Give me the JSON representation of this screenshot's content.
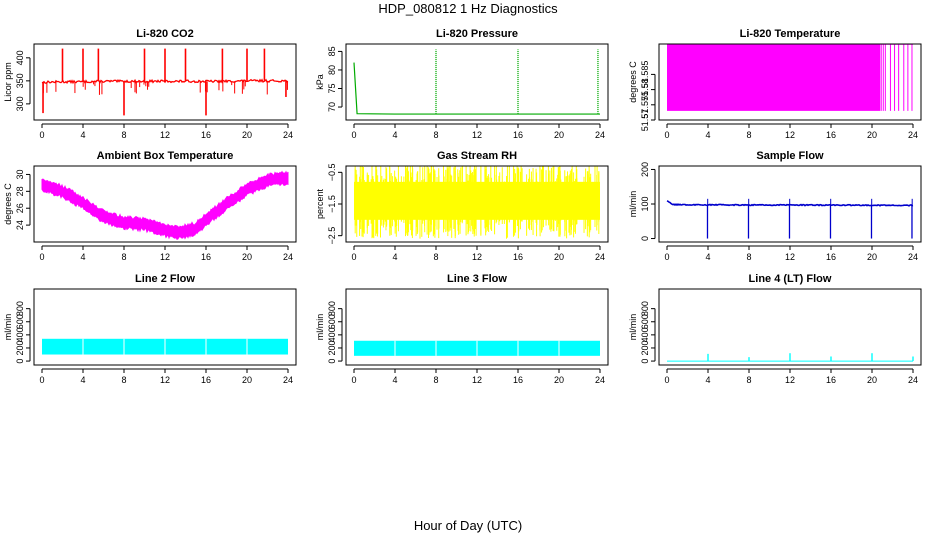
{
  "page": {
    "title": "HDP_080812  1 Hz Diagnostics",
    "xlabel": "Hour of Day (UTC)"
  },
  "chart_data": [
    {
      "type": "line",
      "title": "Li-820 CO2",
      "ylabel": "Licor ppm",
      "color": "#ff0000",
      "xlim": [
        0,
        24
      ],
      "xticks": [
        0,
        4,
        8,
        12,
        16,
        20,
        24
      ],
      "ylim": [
        265,
        430
      ],
      "yticks": [
        300,
        350,
        400
      ],
      "series": [
        {
          "name": "baseline",
          "x": [
            0,
            2,
            4,
            6,
            8,
            10,
            12,
            14,
            16,
            18,
            20,
            22,
            24
          ],
          "y": [
            347,
            348,
            348,
            349,
            349,
            349,
            349,
            349,
            349,
            349,
            350,
            350,
            350
          ]
        },
        {
          "name": "spikes",
          "x": [
            0.1,
            2,
            4,
            5.5,
            8,
            10,
            12,
            14,
            16,
            17.6,
            20,
            21.7,
            23.8
          ],
          "y": [
            280,
            420,
            420,
            420,
            275,
            420,
            420,
            420,
            275,
            420,
            420,
            420,
            315
          ]
        }
      ]
    },
    {
      "type": "line",
      "title": "Li-820 Pressure",
      "ylabel": "kPa",
      "color": "#00aa00",
      "xlim": [
        0,
        24
      ],
      "xticks": [
        0,
        4,
        8,
        12,
        16,
        20,
        24
      ],
      "ylim": [
        66.5,
        87
      ],
      "yticks": [
        70,
        75,
        80,
        85
      ],
      "series": [
        {
          "name": "baseline",
          "x": [
            0,
            0.3,
            4,
            8,
            12,
            16,
            20,
            24
          ],
          "y": [
            82,
            68.2,
            68.1,
            68.1,
            68.1,
            68.1,
            68.1,
            68.1
          ]
        },
        {
          "name": "spikes",
          "x": [
            8,
            16,
            23.8
          ],
          "y": [
            85.5,
            85.5,
            85.5
          ]
        }
      ]
    },
    {
      "type": "area",
      "title": "Li-820 Temperature",
      "ylabel": "degrees C",
      "color": "#ff00ff",
      "xlim": [
        0,
        24
      ],
      "xticks": [
        0,
        4,
        8,
        12,
        16,
        20,
        24
      ],
      "ylim": [
        51.57,
        51.595
      ],
      "yticks": [
        51.57,
        51.575,
        51.58,
        51.585
      ],
      "series": [
        {
          "name": "band",
          "x": [
            0,
            20.8
          ],
          "y_low": [
            51.573,
            51.573
          ],
          "y_high": [
            51.595,
            51.595
          ]
        }
      ]
    },
    {
      "type": "line",
      "title": "Ambient Box Temperature",
      "ylabel": "degrees C",
      "color": "#ff00ff",
      "xlim": [
        0,
        24
      ],
      "xticks": [
        0,
        4,
        8,
        12,
        16,
        20,
        24
      ],
      "ylim": [
        22,
        31
      ],
      "yticks": [
        24,
        26,
        28,
        30
      ],
      "series": [
        {
          "name": "temperature",
          "x": [
            0,
            2,
            4,
            6,
            8,
            10,
            12,
            13.5,
            15,
            16,
            18,
            20,
            22,
            24
          ],
          "y": [
            28.8,
            28,
            26.6,
            25,
            24.3,
            24.1,
            23.4,
            23.1,
            23.6,
            24.6,
            26.5,
            28.2,
            29.3,
            29.6
          ]
        }
      ]
    },
    {
      "type": "area",
      "title": "Gas Stream RH",
      "ylabel": "percent",
      "color": "#ffff00",
      "xlim": [
        0,
        24
      ],
      "xticks": [
        0,
        4,
        8,
        12,
        16,
        20,
        24
      ],
      "ylim": [
        -2.7,
        -0.3
      ],
      "yticks": [
        -2.5,
        -1.5,
        -0.5
      ],
      "series": [
        {
          "name": "noise",
          "x": [
            0,
            24
          ],
          "y_low": [
            -2.0,
            -2.0
          ],
          "y_high": [
            -0.8,
            -0.8
          ]
        }
      ]
    },
    {
      "type": "line",
      "title": "Sample Flow",
      "ylabel": "ml/min",
      "color": "#0000cc",
      "xlim": [
        0,
        24
      ],
      "xticks": [
        0,
        4,
        8,
        12,
        16,
        20,
        24
      ],
      "ylim": [
        -10,
        210
      ],
      "yticks": [
        0,
        100,
        200
      ],
      "series": [
        {
          "name": "baseline",
          "x": [
            0,
            0.5,
            24
          ],
          "y": [
            110,
            98,
            96
          ]
        },
        {
          "name": "dips",
          "x": [
            3.95,
            7.95,
            11.95,
            15.95,
            19.95,
            23.9
          ],
          "y": [
            0,
            0,
            0,
            0,
            0,
            0
          ]
        }
      ]
    },
    {
      "type": "area",
      "title": "Line 2 Flow",
      "ylabel": "ml/min",
      "color": "#00ffff",
      "xlim": [
        0,
        24
      ],
      "xticks": [
        0,
        4,
        8,
        12,
        16,
        20,
        24
      ],
      "ylim": [
        -60,
        1100
      ],
      "yticks": [
        0,
        200,
        400,
        600,
        800
      ],
      "series": [
        {
          "name": "band",
          "x": [
            0,
            24
          ],
          "y_low": [
            100,
            100
          ],
          "y_high": [
            340,
            340
          ]
        }
      ]
    },
    {
      "type": "area",
      "title": "Line 3 Flow",
      "ylabel": "ml/min",
      "color": "#00ffff",
      "xlim": [
        0,
        24
      ],
      "xticks": [
        0,
        4,
        8,
        12,
        16,
        20,
        24
      ],
      "ylim": [
        -60,
        1100
      ],
      "yticks": [
        0,
        200,
        400,
        600,
        800
      ],
      "series": [
        {
          "name": "band",
          "x": [
            0,
            24
          ],
          "y_low": [
            80,
            80
          ],
          "y_high": [
            310,
            310
          ]
        }
      ]
    },
    {
      "type": "line",
      "title": "Line 4 (LT) Flow",
      "ylabel": "ml/min",
      "color": "#00ffff",
      "xlim": [
        0,
        24
      ],
      "xticks": [
        0,
        4,
        8,
        12,
        16,
        20,
        24
      ],
      "ylim": [
        -60,
        1100
      ],
      "yticks": [
        0,
        200,
        400,
        600,
        800
      ],
      "series": [
        {
          "name": "baseline",
          "x": [
            0,
            24
          ],
          "y": [
            0,
            0
          ]
        },
        {
          "name": "spikes",
          "x": [
            4,
            8,
            12,
            16,
            20,
            24
          ],
          "y": [
            110,
            60,
            120,
            70,
            120,
            70
          ]
        }
      ]
    }
  ]
}
